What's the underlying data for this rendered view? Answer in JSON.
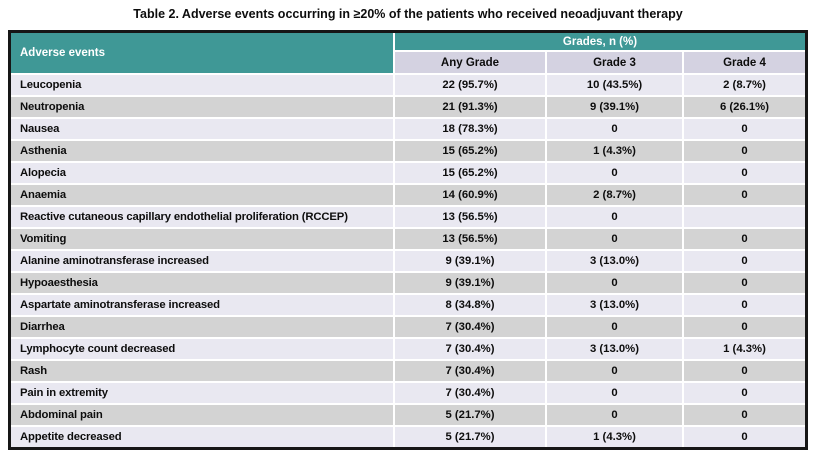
{
  "title": "Table 2. Adverse events occurring in ≥20% of the patients who received neoadjuvant therapy",
  "table": {
    "header": {
      "adverse_events": "Adverse events",
      "grades_group": "Grades, n (%)",
      "columns": [
        "Any Grade",
        "Grade 3",
        "Grade 4"
      ]
    },
    "rows": [
      {
        "event": "Leucopenia",
        "any_grade": "22 (95.7%)",
        "grade3": "10 (43.5%)",
        "grade4": "2 (8.7%)"
      },
      {
        "event": "Neutropenia",
        "any_grade": "21 (91.3%)",
        "grade3": "9 (39.1%)",
        "grade4": "6 (26.1%)"
      },
      {
        "event": "Nausea",
        "any_grade": "18 (78.3%)",
        "grade3": "0",
        "grade4": "0"
      },
      {
        "event": "Asthenia",
        "any_grade": "15 (65.2%)",
        "grade3": "1 (4.3%)",
        "grade4": "0"
      },
      {
        "event": "Alopecia",
        "any_grade": "15 (65.2%)",
        "grade3": "0",
        "grade4": "0"
      },
      {
        "event": "Anaemia",
        "any_grade": "14 (60.9%)",
        "grade3": "2 (8.7%)",
        "grade4": "0"
      },
      {
        "event": "Reactive cutaneous capillary endothelial proliferation (RCCEP)",
        "any_grade": "13 (56.5%)",
        "grade3": "0",
        "grade4": ""
      },
      {
        "event": "Vomiting",
        "any_grade": "13 (56.5%)",
        "grade3": "0",
        "grade4": "0"
      },
      {
        "event": "Alanine aminotransferase increased",
        "any_grade": "9 (39.1%)",
        "grade3": "3 (13.0%)",
        "grade4": "0"
      },
      {
        "event": "Hypoaesthesia",
        "any_grade": "9 (39.1%)",
        "grade3": "0",
        "grade4": "0"
      },
      {
        "event": "Aspartate aminotransferase increased",
        "any_grade": "8 (34.8%)",
        "grade3": "3 (13.0%)",
        "grade4": "0"
      },
      {
        "event": "Diarrhea",
        "any_grade": "7 (30.4%)",
        "grade3": "0",
        "grade4": "0"
      },
      {
        "event": "Lymphocyte count decreased",
        "any_grade": "7 (30.4%)",
        "grade3": "3 (13.0%)",
        "grade4": "1 (4.3%)"
      },
      {
        "event": "Rash",
        "any_grade": "7 (30.4%)",
        "grade3": "0",
        "grade4": "0"
      },
      {
        "event": "Pain in extremity",
        "any_grade": "7 (30.4%)",
        "grade3": "0",
        "grade4": "0"
      },
      {
        "event": "Abdominal pain",
        "any_grade": "5 (21.7%)",
        "grade3": "0",
        "grade4": "0"
      },
      {
        "event": "Appetite decreased",
        "any_grade": "5 (21.7%)",
        "grade3": "1 (4.3%)",
        "grade4": "0"
      }
    ]
  },
  "colors": {
    "teal_header": "#3f9896",
    "subheader_bg": "#d4d2e1",
    "row_light_bg": "#e9e8f1",
    "row_gray_bg": "#d3d3d3",
    "outer_border": "#161616",
    "header_text": "#ffffff",
    "body_text": "#0d0d0d"
  }
}
